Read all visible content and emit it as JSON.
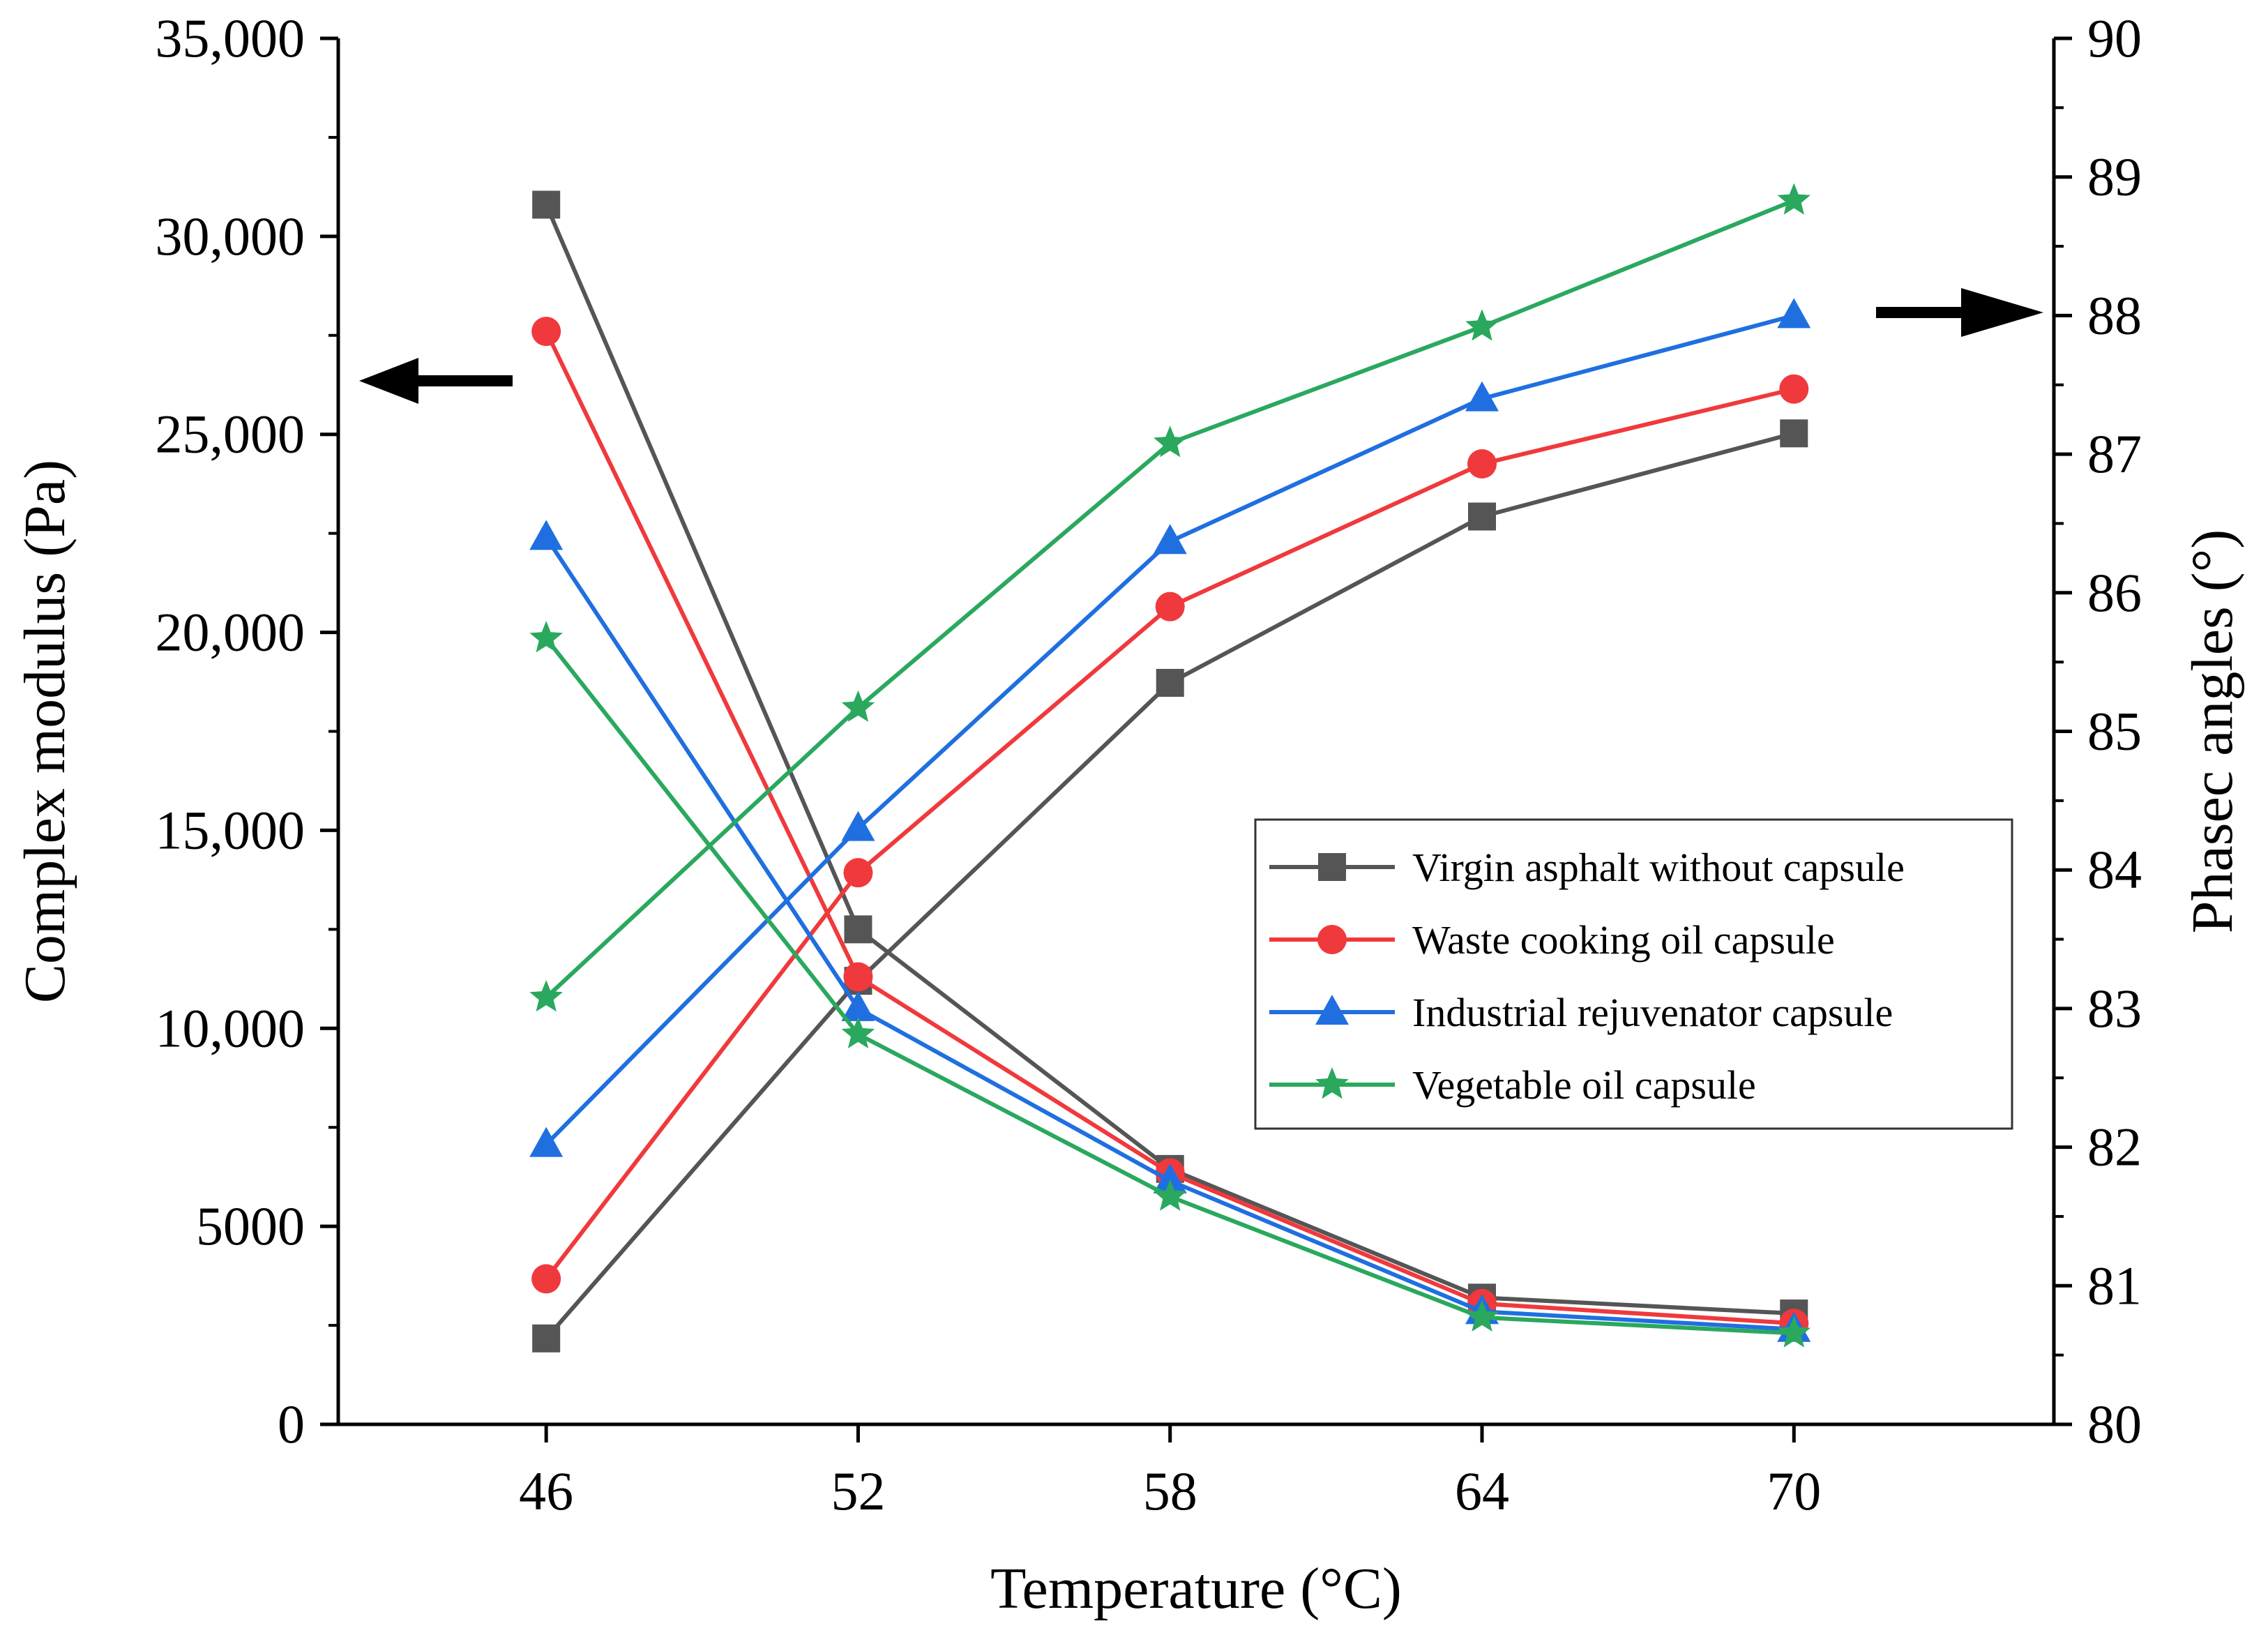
{
  "chart_data": {
    "type": "line",
    "xlabel": "Temperature (°C)",
    "ylabel_left": "Complex modulus (Pa)",
    "ylabel_right": "Phasec angles (°)",
    "x": [
      46,
      52,
      58,
      64,
      70
    ],
    "xlim": [
      42,
      75
    ],
    "ylim_left": [
      0,
      35000
    ],
    "ylim_right": [
      80,
      90
    ],
    "x_tick_labels": [
      "46",
      "52",
      "58",
      "64",
      "70"
    ],
    "left_tick_values": [
      0,
      5000,
      10000,
      15000,
      20000,
      25000,
      30000,
      35000
    ],
    "left_tick_labels": [
      "0",
      "5000",
      "10,000",
      "15,000",
      "20,000",
      "25,000",
      "30,000",
      "35,000"
    ],
    "right_tick_values": [
      80,
      81,
      82,
      83,
      84,
      85,
      86,
      87,
      88,
      89,
      90
    ],
    "right_tick_labels": [
      "80",
      "81",
      "82",
      "83",
      "84",
      "85",
      "86",
      "87",
      "88",
      "89",
      "90"
    ],
    "series": [
      {
        "name": "Virgin asphalt without capsule",
        "color": "#555555",
        "marker": "square",
        "complex_modulus": [
          30800,
          12500,
          6450,
          3200,
          2800
        ],
        "phase_angle": [
          80.62,
          83.2,
          85.35,
          86.55,
          87.15
        ]
      },
      {
        "name": "Waste cooking oil capsule",
        "color": "#f0393c",
        "marker": "circle",
        "complex_modulus": [
          27600,
          11300,
          6350,
          3050,
          2550
        ],
        "phase_angle": [
          81.05,
          83.98,
          85.9,
          86.93,
          87.47
        ]
      },
      {
        "name": "Industrial rejuvenator capsule",
        "color": "#1f6fe0",
        "marker": "triangle",
        "complex_modulus": [
          22400,
          10500,
          6150,
          2850,
          2400
        ],
        "phase_angle": [
          82.02,
          84.3,
          86.37,
          87.4,
          88.0
        ]
      },
      {
        "name": "Vegetable oil capsule",
        "color": "#2aa85e",
        "marker": "star",
        "complex_modulus": [
          19850,
          9850,
          5750,
          2700,
          2300
        ],
        "phase_angle": [
          83.08,
          85.17,
          87.08,
          87.92,
          88.83
        ]
      }
    ],
    "legend_position": "center-right",
    "annotations": [
      {
        "type": "arrow",
        "direction": "left",
        "meaning": "curves read on left axis (complex modulus)"
      },
      {
        "type": "arrow",
        "direction": "right",
        "meaning": "curves read on right axis (phase angle)"
      }
    ]
  }
}
